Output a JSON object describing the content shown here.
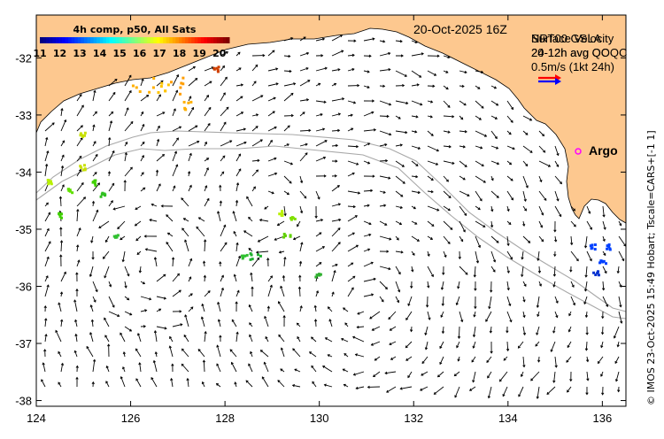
{
  "map": {
    "date_label": "20-Oct-2025 16Z",
    "legend_line_1": "NRT00 GSLA",
    "legend_line_2": "24-12h avg OOQC",
    "legend_overlay_1": "Surface Velocity",
    "legend_overlay_2": "20-12h avg QC",
    "scale_label": "0.5m/s (1kt 24h)",
    "argo_label": "Argo",
    "credit": "© IMOS 23-Oct-2025 15:49 Hobart; Tscale=CARS+[-1 1]",
    "colorbar": {
      "title": "4h comp, p50, All Sats",
      "ticks": [
        "11",
        "12",
        "13",
        "14",
        "15",
        "16",
        "17",
        "18",
        "19",
        "20"
      ],
      "range": [
        11,
        20.5
      ],
      "colors": [
        "#00007f",
        "#0000ff",
        "#007fff",
        "#00ffff",
        "#7fff7f",
        "#ffff00",
        "#ff7f00",
        "#ff0000",
        "#7f0000"
      ]
    },
    "x_axis": {
      "ticks": [
        "124",
        "126",
        "128",
        "130",
        "132",
        "134",
        "136"
      ],
      "range": [
        124,
        136.5
      ]
    },
    "y_axis": {
      "ticks": [
        "-32",
        "-33",
        "-34",
        "-35",
        "-36",
        "-37",
        "-38"
      ],
      "range": [
        -38.1,
        -31.25
      ]
    },
    "colors": {
      "land": "#fdc88f",
      "vector": "#000000",
      "contour": "#a8a8a8",
      "argo": "#ff00ff",
      "scale_arrow_red": "#ff0000",
      "scale_arrow_blue": "#0000ff"
    },
    "argo_float": {
      "lon": 135.55,
      "lat": -33.6
    }
  }
}
